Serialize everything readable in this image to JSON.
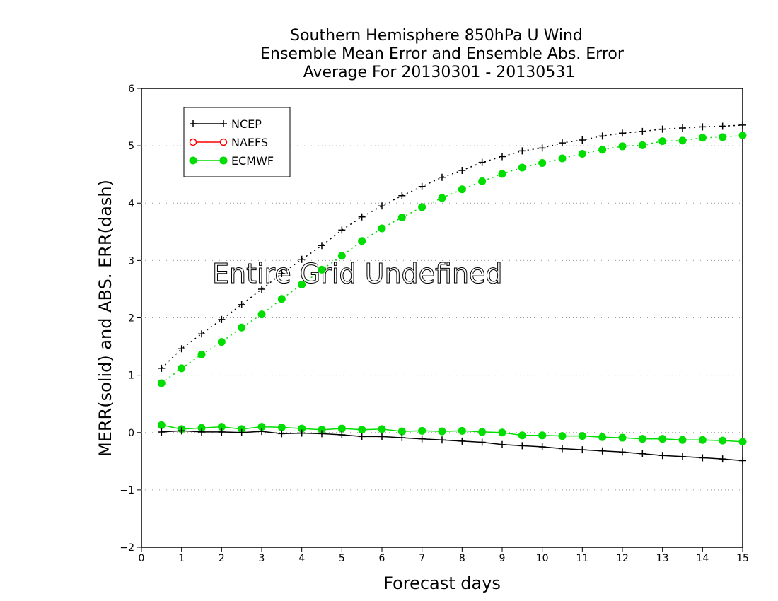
{
  "chart_data": {
    "type": "line",
    "title_lines": [
      "Southern Hemisphere 850hPa U Wind",
      "Ensemble Mean Error and Ensemble Abs. Error",
      "Average For 20130301 - 20130531"
    ],
    "xlabel": "Forecast days",
    "ylabel": "MERR(solid) and ABS. ERR(dash)",
    "xlim": [
      0,
      15
    ],
    "ylim": [
      -2,
      6
    ],
    "xticks": [
      0,
      1,
      2,
      3,
      4,
      5,
      6,
      7,
      8,
      9,
      10,
      11,
      12,
      13,
      14,
      15
    ],
    "yticks": [
      -2,
      -1,
      0,
      1,
      2,
      3,
      4,
      5,
      6
    ],
    "grid": "horizontal dotted",
    "legend_position": "top-left",
    "annotation": "Entire Grid Undefined",
    "x": [
      0.5,
      1,
      1.5,
      2,
      2.5,
      3,
      3.5,
      4,
      4.5,
      5,
      5.5,
      6,
      6.5,
      7,
      7.5,
      8,
      8.5,
      9,
      9.5,
      10,
      10.5,
      11,
      11.5,
      12,
      12.5,
      13,
      13.5,
      14,
      14.5,
      15
    ],
    "series": [
      {
        "name": "NCEP",
        "color": "#000000",
        "marker": "plus",
        "merr": [
          0.01,
          0.03,
          0.01,
          0.01,
          0.0,
          0.02,
          -0.02,
          -0.01,
          -0.02,
          -0.04,
          -0.07,
          -0.07,
          -0.09,
          -0.11,
          -0.13,
          -0.15,
          -0.17,
          -0.21,
          -0.23,
          -0.25,
          -0.28,
          -0.3,
          -0.32,
          -0.34,
          -0.37,
          -0.4,
          -0.42,
          -0.44,
          -0.46,
          -0.49
        ],
        "abs_err": [
          1.12,
          1.46,
          1.72,
          1.97,
          2.23,
          2.5,
          2.77,
          3.02,
          3.26,
          3.53,
          3.76,
          3.95,
          4.13,
          4.29,
          4.45,
          4.57,
          4.71,
          4.81,
          4.91,
          4.96,
          5.05,
          5.1,
          5.17,
          5.22,
          5.25,
          5.29,
          5.31,
          5.33,
          5.34,
          5.36
        ]
      },
      {
        "name": "NAEFS",
        "color": "#ff0000",
        "marker": "circle-open",
        "merr": [],
        "abs_err": []
      },
      {
        "name": "ECMWF",
        "color": "#00dd00",
        "marker": "circle-filled",
        "merr": [
          0.13,
          0.06,
          0.08,
          0.1,
          0.06,
          0.1,
          0.09,
          0.07,
          0.05,
          0.07,
          0.05,
          0.06,
          0.02,
          0.03,
          0.02,
          0.03,
          0.01,
          0.0,
          -0.05,
          -0.05,
          -0.06,
          -0.06,
          -0.08,
          -0.09,
          -0.11,
          -0.11,
          -0.13,
          -0.13,
          -0.14,
          -0.16
        ],
        "abs_err": [
          0.86,
          1.12,
          1.36,
          1.58,
          1.83,
          2.06,
          2.33,
          2.58,
          2.84,
          3.08,
          3.34,
          3.56,
          3.75,
          3.93,
          4.09,
          4.24,
          4.38,
          4.51,
          4.62,
          4.7,
          4.78,
          4.86,
          4.93,
          4.99,
          5.01,
          5.08,
          5.09,
          5.14,
          5.15,
          5.18
        ]
      }
    ]
  }
}
